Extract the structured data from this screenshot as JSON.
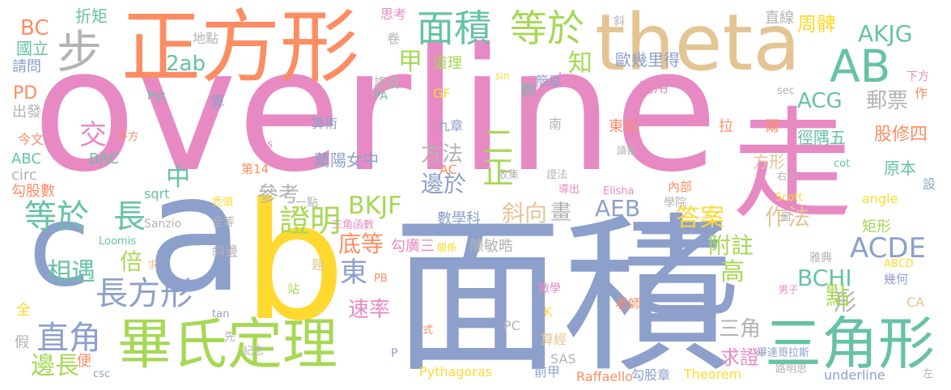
{
  "palette": {
    "pink": "#e78ac3",
    "blue": "#8da0cb",
    "orange": "#fc8d62",
    "green": "#66c2a5",
    "lime": "#a6d854",
    "yellow": "#ffd92f",
    "tan": "#e5c494",
    "gray": "#b3b3b3"
  },
  "words": [
    {
      "text": "overline",
      "color": "pink"
    },
    {
      "text": "面積",
      "color": "blue"
    },
    {
      "text": "正方形",
      "color": "orange"
    },
    {
      "text": "theta",
      "color": "tan"
    },
    {
      "text": "a",
      "color": "blue"
    },
    {
      "text": "b",
      "color": "yellow"
    },
    {
      "text": "c",
      "color": "blue"
    },
    {
      "text": "走",
      "color": "pink"
    },
    {
      "text": "乙",
      "color": "blue"
    },
    {
      "text": "畢氏定理",
      "color": "lime"
    },
    {
      "text": "三角形",
      "color": "green"
    },
    {
      "text": "AB",
      "color": "green"
    },
    {
      "text": "步",
      "color": "gray"
    },
    {
      "text": "面積",
      "color": "green"
    },
    {
      "text": "等於",
      "color": "lime"
    },
    {
      "text": "長方形",
      "color": "blue"
    },
    {
      "text": "等於",
      "color": "green"
    },
    {
      "text": "長",
      "color": "green"
    },
    {
      "text": "證明",
      "color": "lime"
    },
    {
      "text": "直角",
      "color": "blue"
    },
    {
      "text": "ACDE",
      "color": "blue"
    },
    {
      "text": "AKJG",
      "color": "green"
    },
    {
      "text": "BKJF",
      "color": "lime"
    },
    {
      "text": "2ab",
      "color": "green"
    },
    {
      "text": "甲",
      "color": "lime"
    },
    {
      "text": "知",
      "color": "lime"
    },
    {
      "text": "周髀",
      "color": "yellow"
    },
    {
      "text": "郵票",
      "color": "gray"
    },
    {
      "text": "ACG",
      "color": "green"
    },
    {
      "text": "二正",
      "color": "lime"
    },
    {
      "text": "方法",
      "color": "gray"
    },
    {
      "text": "邊於",
      "color": "blue"
    },
    {
      "text": "參考",
      "color": "gray"
    },
    {
      "text": "中",
      "color": "green"
    },
    {
      "text": "交",
      "color": "pink"
    },
    {
      "text": "斜向",
      "color": "tan"
    },
    {
      "text": "畫",
      "color": "gray"
    },
    {
      "text": "AEB",
      "color": "blue"
    },
    {
      "text": "答案",
      "color": "yellow"
    },
    {
      "text": "作法",
      "color": "tan"
    },
    {
      "text": "底等",
      "color": "orange"
    },
    {
      "text": "附註",
      "color": "lime"
    },
    {
      "text": "BCHI",
      "color": "green"
    },
    {
      "text": "東",
      "color": "blue"
    },
    {
      "text": "相遇",
      "color": "green"
    },
    {
      "text": "倍",
      "color": "lime"
    },
    {
      "text": "速率",
      "color": "pink"
    },
    {
      "text": "高",
      "color": "lime"
    },
    {
      "text": "形",
      "color": "gray"
    },
    {
      "text": "點",
      "color": "lime"
    },
    {
      "text": "三角",
      "color": "gray"
    },
    {
      "text": "求證",
      "color": "pink"
    },
    {
      "text": "邊長",
      "color": "lime"
    },
    {
      "text": "PD",
      "color": "orange"
    },
    {
      "text": "BC",
      "color": "orange"
    },
    {
      "text": "國立",
      "color": "green"
    },
    {
      "text": "請問",
      "color": "blue"
    },
    {
      "text": "出發",
      "color": "gray"
    },
    {
      "text": "今文",
      "color": "orange"
    },
    {
      "text": "ABC",
      "color": "green"
    },
    {
      "text": "circ",
      "color": "gray"
    },
    {
      "text": "勾股數",
      "color": "orange"
    },
    {
      "text": "折矩",
      "color": "green"
    },
    {
      "text": "地點",
      "color": "gray"
    },
    {
      "text": "思考",
      "color": "pink"
    },
    {
      "text": "卷",
      "color": "gray"
    },
    {
      "text": "道理",
      "color": "lime"
    },
    {
      "text": "譯成",
      "color": "gray"
    },
    {
      "text": "GF",
      "color": "yellow"
    },
    {
      "text": "PA",
      "color": "green"
    },
    {
      "text": "斜",
      "color": "gray"
    },
    {
      "text": "歐幾里得",
      "color": "blue"
    },
    {
      "text": "直線",
      "color": "gray"
    },
    {
      "text": "簡單",
      "color": "blue"
    },
    {
      "text": "例",
      "color": "green"
    },
    {
      "text": "利用",
      "color": "pink"
    },
    {
      "text": "作",
      "color": "orange"
    },
    {
      "text": "下方",
      "color": "pink"
    },
    {
      "text": "sec",
      "color": "gray"
    },
    {
      "text": "sin",
      "color": "yellow"
    },
    {
      "text": "Pyt",
      "color": "green"
    },
    {
      "text": "算",
      "color": "blue"
    },
    {
      "text": "算術",
      "color": "blue"
    },
    {
      "text": "九章",
      "color": "blue"
    },
    {
      "text": "南",
      "color": "gray"
    },
    {
      "text": "東北",
      "color": "orange"
    },
    {
      "text": "拉",
      "color": "orange"
    },
    {
      "text": "爾",
      "color": "orange"
    },
    {
      "text": "徑隅五",
      "color": "green"
    },
    {
      "text": "股修四",
      "color": "orange"
    },
    {
      "text": "平方",
      "color": "orange"
    },
    {
      "text": "BAC",
      "color": "green"
    },
    {
      "text": "cos",
      "color": "pink"
    },
    {
      "text": "讀書",
      "color": "gray"
    },
    {
      "text": "第14",
      "color": "orange"
    },
    {
      "text": "AC",
      "color": "orange"
    },
    {
      "text": "收集",
      "color": "gray"
    },
    {
      "text": "證法",
      "color": "gray"
    },
    {
      "text": "蘭陽女中",
      "color": "blue"
    },
    {
      "text": "方形",
      "color": "tan"
    },
    {
      "text": "右下",
      "color": "gray"
    },
    {
      "text": "cot",
      "color": "green"
    },
    {
      "text": "原本",
      "color": "green"
    },
    {
      "text": "sqrt",
      "color": "green"
    },
    {
      "text": "禿頭",
      "color": "yellow"
    },
    {
      "text": "一點",
      "color": "gray"
    },
    {
      "text": "導出",
      "color": "pink"
    },
    {
      "text": "Elisha",
      "color": "pink"
    },
    {
      "text": "內部",
      "color": "orange"
    },
    {
      "text": "Scott",
      "color": "yellow"
    },
    {
      "text": "設",
      "color": "blue"
    },
    {
      "text": "Sanzio",
      "color": "gray"
    },
    {
      "text": "全等",
      "color": "gray"
    },
    {
      "text": "數學科",
      "color": "blue"
    },
    {
      "text": "學院",
      "color": "gray"
    },
    {
      "text": "angle",
      "color": "yellow"
    },
    {
      "text": "Loomis",
      "color": "green"
    },
    {
      "text": "三角函數",
      "color": "pink"
    },
    {
      "text": "勾廣三",
      "color": "pink"
    },
    {
      "text": "圖",
      "color": "gray"
    },
    {
      "text": "矩形",
      "color": "lime"
    },
    {
      "text": "斜邊",
      "color": "gray"
    },
    {
      "text": "題",
      "color": "tan"
    },
    {
      "text": "陳敏晧",
      "color": "gray"
    },
    {
      "text": "關係",
      "color": "yellow"
    },
    {
      "text": "雅典",
      "color": "gray"
    },
    {
      "text": "ABCD",
      "color": "yellow"
    },
    {
      "text": "求",
      "color": "tan"
    },
    {
      "text": "PB",
      "color": "orange"
    },
    {
      "text": "站",
      "color": "lime"
    },
    {
      "text": "男子",
      "color": "pink"
    },
    {
      "text": "數學",
      "color": "pink"
    },
    {
      "text": "幾何",
      "color": "blue"
    },
    {
      "text": "老師",
      "color": "orange"
    },
    {
      "text": "CA",
      "color": "tan"
    },
    {
      "text": "全",
      "color": "yellow"
    },
    {
      "text": "tan",
      "color": "blue"
    },
    {
      "text": "K",
      "color": "yellow"
    },
    {
      "text": "假",
      "color": "gray"
    },
    {
      "text": "先",
      "color": "gray"
    },
    {
      "text": "紀念",
      "color": "gray"
    },
    {
      "text": "式",
      "color": "orange"
    },
    {
      "text": "PC",
      "color": "gray"
    },
    {
      "text": "算經",
      "color": "tan"
    },
    {
      "text": "畢達哥拉斯",
      "color": "blue"
    },
    {
      "text": "便",
      "color": "orange"
    },
    {
      "text": "P",
      "color": "blue"
    },
    {
      "text": "SAS",
      "color": "gray"
    },
    {
      "text": "路明思",
      "color": "gray"
    },
    {
      "text": "csc",
      "color": "blue"
    },
    {
      "text": "Pythagoras",
      "color": "yellow"
    },
    {
      "text": "前甲",
      "color": "blue"
    },
    {
      "text": "Raffaello",
      "color": "orange"
    },
    {
      "text": "勾股章",
      "color": "blue"
    },
    {
      "text": "Theorem",
      "color": "yellow"
    },
    {
      "text": "underline",
      "color": "blue"
    },
    {
      "text": "左",
      "color": "gray"
    },
    {
      "text": "J",
      "color": "pink"
    }
  ]
}
